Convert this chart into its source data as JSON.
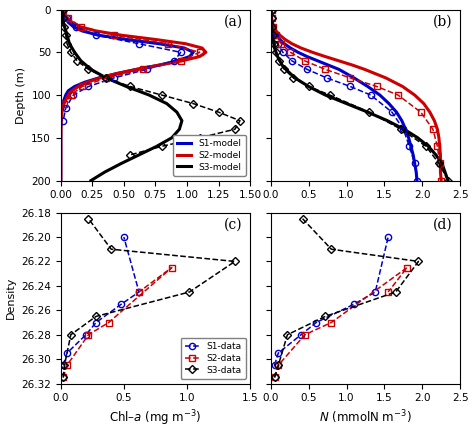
{
  "panel_a": {
    "label": "(a)",
    "depth_range": [
      0,
      200
    ],
    "chl_range": [
      0,
      1.5
    ],
    "s1_model_depth": [
      0,
      5,
      10,
      15,
      20,
      25,
      30,
      35,
      40,
      45,
      50,
      55,
      60,
      65,
      70,
      75,
      80,
      85,
      90,
      95,
      100,
      110,
      120,
      130,
      140,
      150,
      160,
      170,
      180,
      190,
      200
    ],
    "s1_model_chl": [
      0.02,
      0.03,
      0.04,
      0.06,
      0.1,
      0.17,
      0.3,
      0.52,
      0.78,
      0.98,
      1.05,
      1.02,
      0.92,
      0.78,
      0.6,
      0.44,
      0.3,
      0.19,
      0.11,
      0.06,
      0.04,
      0.015,
      0.006,
      0.003,
      0.001,
      0.001,
      0.001,
      0.001,
      0.001,
      0.001,
      0.001
    ],
    "s2_model_depth": [
      0,
      5,
      10,
      15,
      20,
      25,
      30,
      35,
      40,
      45,
      50,
      55,
      60,
      65,
      70,
      75,
      80,
      85,
      90,
      95,
      100,
      110,
      120,
      130,
      140,
      150,
      160,
      170,
      180,
      190,
      200
    ],
    "s2_model_chl": [
      0.02,
      0.03,
      0.05,
      0.09,
      0.15,
      0.28,
      0.48,
      0.75,
      0.99,
      1.12,
      1.15,
      1.1,
      0.96,
      0.78,
      0.6,
      0.44,
      0.31,
      0.21,
      0.14,
      0.09,
      0.06,
      0.025,
      0.01,
      0.005,
      0.002,
      0.001,
      0.001,
      0.001,
      0.001,
      0.001,
      0.001
    ],
    "s3_model_depth": [
      0,
      5,
      10,
      15,
      20,
      25,
      30,
      35,
      40,
      45,
      50,
      60,
      70,
      80,
      90,
      100,
      110,
      120,
      130,
      140,
      150,
      160,
      170,
      180,
      190,
      200
    ],
    "s3_model_chl": [
      0.02,
      0.02,
      0.02,
      0.02,
      0.03,
      0.04,
      0.05,
      0.06,
      0.07,
      0.09,
      0.11,
      0.16,
      0.24,
      0.36,
      0.52,
      0.7,
      0.84,
      0.92,
      0.96,
      0.94,
      0.88,
      0.76,
      0.62,
      0.48,
      0.35,
      0.24
    ],
    "s1_data_depth": [
      0,
      10,
      20,
      30,
      40,
      50,
      60,
      70,
      80,
      90,
      100,
      115,
      130
    ],
    "s1_data_chl": [
      0.02,
      0.05,
      0.12,
      0.28,
      0.62,
      0.95,
      0.9,
      0.68,
      0.42,
      0.22,
      0.1,
      0.04,
      0.02
    ],
    "s2_data_depth": [
      0,
      10,
      20,
      30,
      40,
      50,
      60,
      70,
      80,
      90,
      100,
      110
    ],
    "s2_data_chl": [
      0.02,
      0.06,
      0.16,
      0.42,
      0.85,
      1.1,
      0.95,
      0.65,
      0.36,
      0.17,
      0.08,
      0.03
    ],
    "s3_data_depth": [
      0,
      10,
      20,
      30,
      40,
      50,
      60,
      70,
      80,
      90,
      100,
      110,
      120,
      130,
      140,
      150,
      160,
      170
    ],
    "s3_data_chl": [
      0.02,
      0.02,
      0.03,
      0.04,
      0.05,
      0.08,
      0.13,
      0.22,
      0.36,
      0.55,
      0.8,
      1.05,
      1.25,
      1.42,
      1.38,
      1.1,
      0.8,
      0.55
    ]
  },
  "panel_b": {
    "label": "(b)",
    "depth_range": [
      0,
      200
    ],
    "N_range": [
      0,
      2.5
    ],
    "s1_model_depth": [
      0,
      5,
      10,
      15,
      20,
      25,
      30,
      35,
      40,
      45,
      50,
      55,
      60,
      65,
      70,
      80,
      90,
      100,
      110,
      120,
      130,
      140,
      150,
      160,
      170,
      180,
      190,
      200
    ],
    "s1_model_N": [
      0.01,
      0.01,
      0.01,
      0.02,
      0.03,
      0.05,
      0.08,
      0.12,
      0.18,
      0.26,
      0.36,
      0.48,
      0.62,
      0.76,
      0.9,
      1.1,
      1.28,
      1.44,
      1.56,
      1.66,
      1.73,
      1.78,
      1.82,
      1.85,
      1.88,
      1.9,
      1.92,
      1.93
    ],
    "s2_model_depth": [
      0,
      5,
      10,
      15,
      20,
      25,
      30,
      35,
      40,
      45,
      50,
      55,
      60,
      65,
      70,
      80,
      90,
      100,
      110,
      120,
      130,
      140,
      150,
      160,
      170,
      180,
      190,
      200
    ],
    "s2_model_N": [
      0.01,
      0.01,
      0.01,
      0.02,
      0.04,
      0.07,
      0.12,
      0.19,
      0.28,
      0.4,
      0.55,
      0.72,
      0.9,
      1.08,
      1.24,
      1.52,
      1.74,
      1.9,
      2.02,
      2.1,
      2.16,
      2.2,
      2.22,
      2.23,
      2.24,
      2.24,
      2.24,
      2.25
    ],
    "s3_model_depth": [
      0,
      5,
      10,
      15,
      20,
      25,
      30,
      35,
      40,
      45,
      50,
      55,
      60,
      65,
      70,
      80,
      90,
      100,
      110,
      120,
      130,
      140,
      150,
      160,
      170,
      180,
      190,
      200
    ],
    "s3_model_N": [
      0.01,
      0.01,
      0.01,
      0.01,
      0.02,
      0.02,
      0.03,
      0.03,
      0.04,
      0.05,
      0.07,
      0.09,
      0.12,
      0.15,
      0.2,
      0.32,
      0.5,
      0.72,
      1.0,
      1.28,
      1.54,
      1.76,
      1.94,
      2.08,
      2.18,
      2.26,
      2.3,
      2.34
    ],
    "s1_data_depth": [
      0,
      10,
      20,
      30,
      40,
      50,
      60,
      70,
      80,
      90,
      100,
      120,
      140,
      160,
      180,
      200
    ],
    "s1_data_N": [
      0.01,
      0.01,
      0.02,
      0.05,
      0.09,
      0.16,
      0.28,
      0.48,
      0.74,
      1.05,
      1.32,
      1.6,
      1.75,
      1.83,
      1.9,
      1.93
    ],
    "s2_data_depth": [
      0,
      10,
      20,
      30,
      40,
      50,
      60,
      70,
      80,
      90,
      100,
      120,
      140,
      160,
      180,
      200
    ],
    "s2_data_N": [
      0.01,
      0.01,
      0.03,
      0.07,
      0.14,
      0.26,
      0.45,
      0.72,
      1.05,
      1.4,
      1.68,
      1.98,
      2.14,
      2.2,
      2.23,
      2.25
    ],
    "s3_data_depth": [
      0,
      10,
      20,
      30,
      40,
      50,
      60,
      70,
      80,
      90,
      100,
      120,
      140,
      160,
      180,
      200
    ],
    "s3_data_N": [
      0.01,
      0.01,
      0.02,
      0.03,
      0.04,
      0.07,
      0.11,
      0.18,
      0.3,
      0.5,
      0.78,
      1.3,
      1.72,
      2.05,
      2.22,
      2.34
    ]
  },
  "panel_c": {
    "label": "(c)",
    "density_range": [
      26.32,
      26.18
    ],
    "chl_range": [
      0,
      1.5
    ],
    "s1_density": [
      26.305,
      26.295,
      26.28,
      26.27,
      26.255,
      26.245,
      26.2
    ],
    "s1_chl": [
      0.02,
      0.05,
      0.2,
      0.28,
      0.48,
      0.62,
      0.5
    ],
    "s2_density": [
      26.315,
      26.305,
      26.28,
      26.27,
      26.225,
      26.245
    ],
    "s2_chl": [
      0.02,
      0.05,
      0.22,
      0.38,
      0.88,
      0.62
    ],
    "s3_density": [
      26.315,
      26.305,
      26.28,
      26.265,
      26.245,
      26.22,
      26.21,
      26.185
    ],
    "s3_chl": [
      0.02,
      0.03,
      0.08,
      0.28,
      1.02,
      1.38,
      0.4,
      0.22
    ]
  },
  "panel_d": {
    "label": "(d)",
    "density_range": [
      26.32,
      26.18
    ],
    "N_range": [
      0,
      2.5
    ],
    "s1_density": [
      26.305,
      26.295,
      26.28,
      26.27,
      26.255,
      26.245,
      26.2
    ],
    "s1_N": [
      0.05,
      0.1,
      0.4,
      0.6,
      1.1,
      1.38,
      1.55
    ],
    "s2_density": [
      26.315,
      26.305,
      26.28,
      26.27,
      26.225,
      26.245
    ],
    "s2_N": [
      0.05,
      0.1,
      0.45,
      0.8,
      1.8,
      1.55
    ],
    "s3_density": [
      26.315,
      26.305,
      26.28,
      26.265,
      26.245,
      26.22,
      26.21,
      26.185
    ],
    "s3_N": [
      0.05,
      0.1,
      0.22,
      0.72,
      1.65,
      1.95,
      0.8,
      0.42
    ]
  },
  "colors": {
    "s1": "#0000cc",
    "s2": "#cc0000",
    "s3": "#000000"
  }
}
